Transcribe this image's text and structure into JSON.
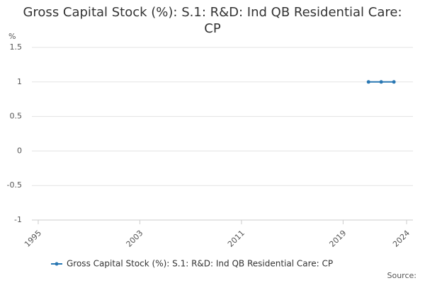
{
  "chart_data": {
    "type": "line",
    "title": "Gross Capital Stock (%): S.1: R&D: Ind QB Residential Care: CP",
    "y_label": "%",
    "source": "Source:",
    "x": [
      2021,
      2022,
      2023
    ],
    "series": [
      {
        "name": "Gross Capital Stock (%): S.1: R&D: Ind QB Residential Care: CP",
        "color": "#2a78b3",
        "values": [
          1,
          1,
          1
        ]
      }
    ],
    "xlim": [
      1994.5,
      2024.5
    ],
    "xticks": [
      1995,
      2003,
      2011,
      2019,
      2024
    ],
    "ylim": [
      -1,
      1.5
    ],
    "yticks": [
      -1,
      -0.5,
      0,
      0.5,
      1,
      1.5
    ],
    "grid": true,
    "legend": "bottom"
  }
}
